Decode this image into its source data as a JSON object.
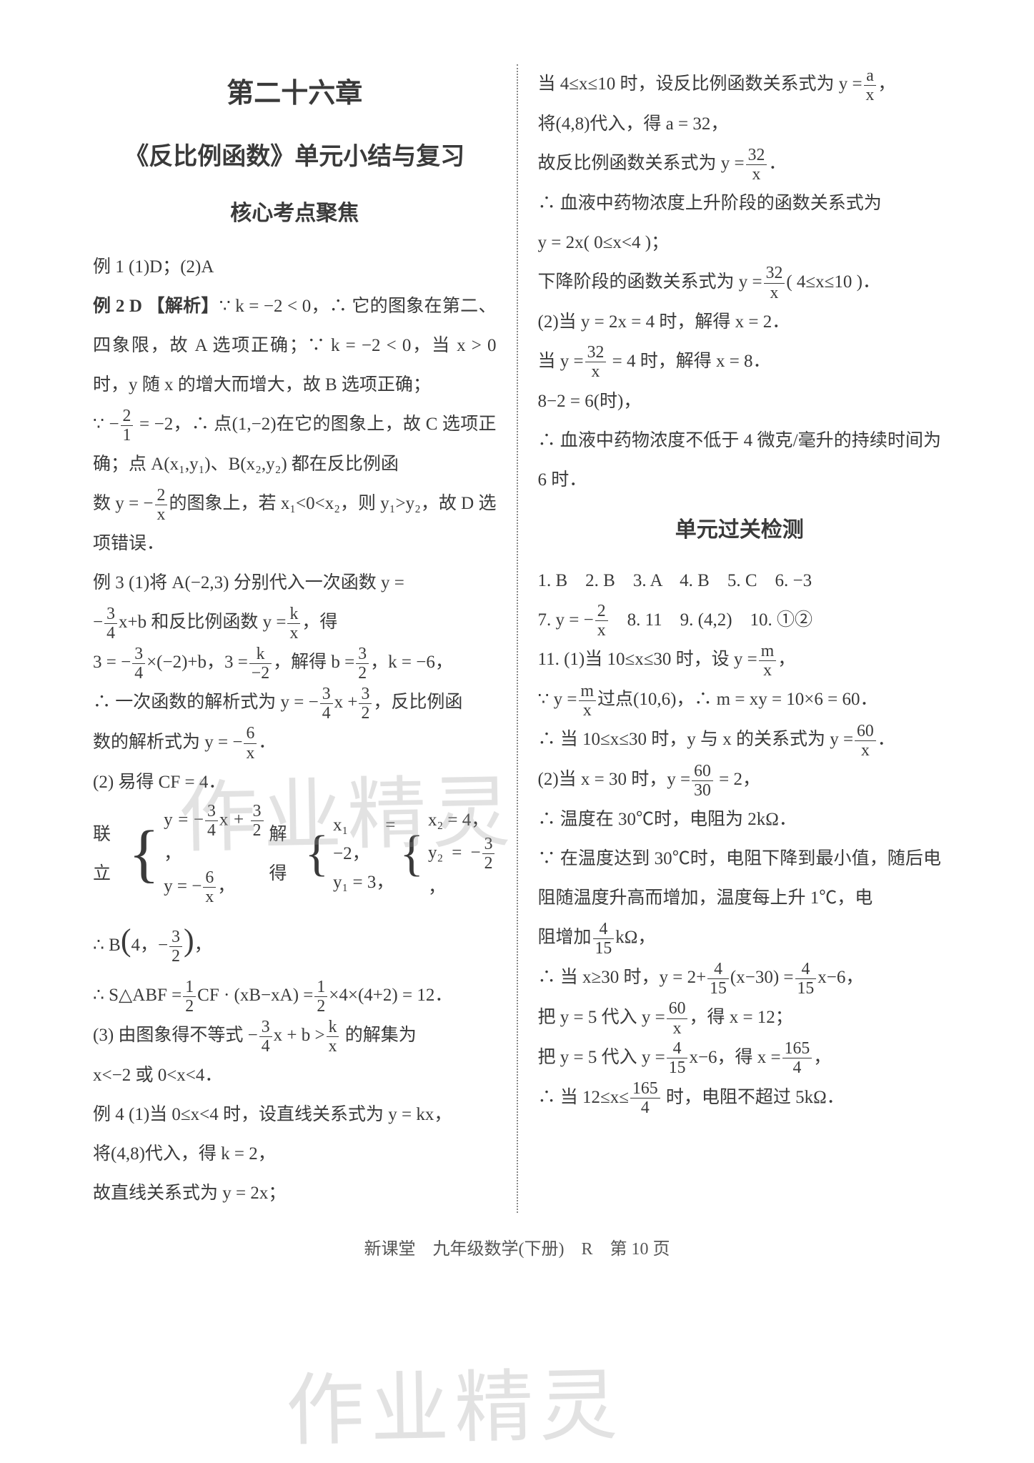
{
  "chapter_title": "第二十六章",
  "section_title": "《反比例函数》单元小结与复习",
  "sub_title_1": "核心考点聚焦",
  "sub_title_2": "单元过关检测",
  "left": {
    "ex1": "例 1  (1)D；(2)A",
    "ex2_head": "例 2  D   【解析】",
    "ex2_body_1": "∵ k = −2 < 0，∴ 它的图象在第二、四象限，故 A 选项正确；∵ k = −2 < 0，当 x > 0 时，y 随 x 的增大而增大，故 B 选项正确；",
    "ex2_body_2_pre": "∵ −",
    "ex2_body_2_post": " = −2，∴ 点(1,−2)在它的图象上，故 C 选项正确；点 A(x₁,y₁)、B(x₂,y₂) 都在反比例函",
    "ex2_body_3_pre": "数 y = −",
    "ex2_body_3_post": "的图象上，若 x₁<0<x₂，则 y₁>y₂，故 D 选项错误．",
    "ex3_head": "例 3  (1)将 A(−2,3) 分别代入一次函数 y =",
    "ex3_line2_pre": "−",
    "ex3_line2_mid": "x+b 和反比例函数 y =",
    "ex3_line2_post": "，得",
    "ex3_line3_pre": "3 = −",
    "ex3_line3_mid1": "×(−2)+b，3 =",
    "ex3_line3_mid2": "，解得 b =",
    "ex3_line3_post": "，k = −6，",
    "ex3_line4_pre": "∴ 一次函数的解析式为 y = −",
    "ex3_line4_mid": "x +",
    "ex3_line4_post": "，反比例函",
    "ex3_line5_pre": "数的解析式为 y = −",
    "ex3_line5_post": "．",
    "ex3_line6": "(2) 易得 CF = 4．",
    "ex3_sys_label": "联立",
    "ex3_sys_solve": "解得",
    "ex3_B_pre": "∴ B",
    "ex3_B_post": "，",
    "ex3_area_pre": "∴ S△ABF =",
    "ex3_area_mid": "CF · (xB−xA) =",
    "ex3_area_post": "×4×(4+2) = 12．",
    "ex3_part3_pre": "(3) 由图象得不等式 −",
    "ex3_part3_mid": "x + b >",
    "ex3_part3_post": " 的解集为",
    "ex3_part3_ans": "x<−2 或 0<x<4．",
    "ex4_line1": "例 4  (1)当 0≤x<4 时，设直线关系式为 y = kx，",
    "ex4_line2": "将(4,8)代入，得 k = 2，",
    "ex4_line3": "故直线关系式为 y = 2x；"
  },
  "right": {
    "r1_pre": "当 4≤x≤10 时，设反比例函数关系式为 y =",
    "r1_post": "，",
    "r2": "将(4,8)代入，得 a = 32，",
    "r3_pre": "故反比例函数关系式为 y =",
    "r3_post": "．",
    "r4": "∴ 血液中药物浓度上升阶段的函数关系式为",
    "r5": "y = 2x( 0≤x<4 )；",
    "r6_pre": "下降阶段的函数关系式为 y =",
    "r6_post": "( 4≤x≤10 )．",
    "r7": "(2)当 y = 2x = 4 时，解得 x = 2．",
    "r8_pre": "当 y =",
    "r8_post": " = 4 时，解得 x = 8．",
    "r9": "8−2 = 6(时)，",
    "r10": "∴ 血液中药物浓度不低于 4 微克/毫升的持续时间为 6 时．",
    "test_answers_1": "1. B　2. B　3. A　4. B　5. C　6. −3",
    "test_7_pre": "7. y = −",
    "test_7_post": "　8. 11　9. (4,2)　10. ①②",
    "q11_1_pre": "11. (1)当 10≤x≤30 时，设 y =",
    "q11_1_post": "，",
    "q11_2_pre": "∵ y =",
    "q11_2_post": "过点(10,6)，∴ m = xy = 10×6 = 60．",
    "q11_3_pre": "∴ 当 10≤x≤30 时，y 与 x 的关系式为 y =",
    "q11_3_post": "．",
    "q11_4_pre": "(2)当 x = 30 时，y =",
    "q11_4_post": " = 2，",
    "q11_5": "∴ 温度在 30℃时，电阻为 2kΩ．",
    "q11_6": "∵ 在温度达到 30℃时，电阻下降到最小值，随后电阻随温度升高而增加，温度每上升 1℃，电",
    "q11_7_pre": "阻增加",
    "q11_7_post": "kΩ，",
    "q11_8_pre": "∴ 当 x≥30 时，y = 2+",
    "q11_8_mid": "(x−30) =",
    "q11_8_post": "x−6，",
    "q11_9_pre": "把 y = 5 代入 y =",
    "q11_9_post": "，得 x = 12；",
    "q11_10_pre": "把 y = 5 代入 y =",
    "q11_10_mid": "x−6，得 x =",
    "q11_10_post": "，",
    "q11_11_pre": "∴ 当 12≤x≤",
    "q11_11_post": " 时，电阻不超过 5kΩ．"
  },
  "footer": "新课堂　九年级数学(下册)　R　第 10 页",
  "watermark1": "作业精灵",
  "watermark2": "作业精灵",
  "fracs": {
    "2_1": {
      "n": "2",
      "d": "1"
    },
    "2_x": {
      "n": "2",
      "d": "x"
    },
    "3_4": {
      "n": "3",
      "d": "4"
    },
    "k_x": {
      "n": "k",
      "d": "x"
    },
    "k_-2": {
      "n": "k",
      "d": "−2"
    },
    "3_2": {
      "n": "3",
      "d": "2"
    },
    "6_x": {
      "n": "6",
      "d": "x"
    },
    "1_2": {
      "n": "1",
      "d": "2"
    },
    "a_x": {
      "n": "a",
      "d": "x"
    },
    "32_x": {
      "n": "32",
      "d": "x"
    },
    "m_x": {
      "n": "m",
      "d": "x"
    },
    "60_x": {
      "n": "60",
      "d": "x"
    },
    "60_30": {
      "n": "60",
      "d": "30"
    },
    "4_15": {
      "n": "4",
      "d": "15"
    },
    "165_4": {
      "n": "165",
      "d": "4"
    }
  }
}
